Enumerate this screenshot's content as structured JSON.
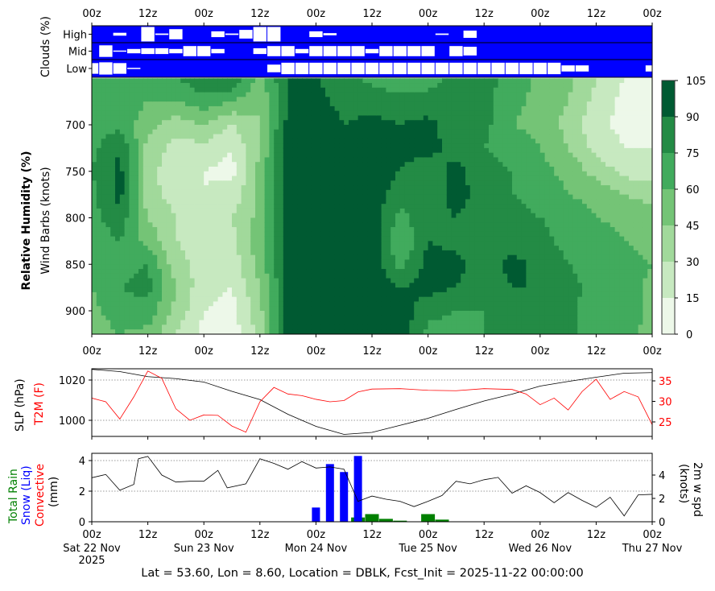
{
  "footer": "Lat = 53.60, Lon = 8.60, Location = DBLK, Fcst_Init = 2025-11-22 00:00:00",
  "time_axis": {
    "range_hours": [
      0,
      120
    ],
    "tick_hours": [
      0,
      12,
      24,
      36,
      48,
      60,
      72,
      84,
      96,
      108,
      120
    ],
    "tick_labels": [
      "00z",
      "12z",
      "00z",
      "12z",
      "00z",
      "12z",
      "00z",
      "12z",
      "00z",
      "12z",
      "00z"
    ],
    "date_hours": [
      0,
      24,
      48,
      72,
      96,
      120
    ],
    "date_labels": [
      "Sat 22 Nov",
      "Sun 23 Nov",
      "Mon 24 Nov",
      "Tue 25 Nov",
      "Wed 26 Nov",
      "Thu 27 Nov"
    ],
    "year_label": "2025"
  },
  "chart_data": [
    {
      "type": "heatmap",
      "panel": "clouds",
      "ylabel": "Clouds (%)",
      "row_labels": [
        "High",
        "Mid",
        "Low"
      ],
      "background_color": "#0000ff",
      "box_color": "#ffffff",
      "time_step_hours": 3,
      "rows": {
        "High": [
          0,
          0,
          20,
          0,
          100,
          10,
          70,
          0,
          0,
          40,
          10,
          60,
          100,
          100,
          0,
          0,
          40,
          15,
          0,
          0,
          0,
          0,
          0,
          0,
          0,
          10,
          0,
          50,
          0,
          0,
          0,
          0,
          0,
          0,
          0,
          0,
          0,
          0,
          0,
          0,
          0
        ],
        "Mid": [
          0,
          80,
          5,
          30,
          40,
          40,
          30,
          70,
          70,
          30,
          0,
          0,
          40,
          70,
          70,
          30,
          70,
          70,
          70,
          70,
          30,
          70,
          70,
          70,
          70,
          0,
          70,
          60,
          0,
          0,
          0,
          0,
          0,
          0,
          0,
          0,
          0,
          0,
          0,
          0,
          0
        ],
        "Low": [
          70,
          80,
          70,
          5,
          0,
          0,
          0,
          0,
          0,
          0,
          0,
          0,
          0,
          50,
          75,
          75,
          75,
          75,
          75,
          75,
          75,
          75,
          75,
          75,
          75,
          75,
          75,
          75,
          75,
          75,
          75,
          75,
          75,
          75,
          40,
          40,
          0,
          0,
          0,
          0,
          40
        ]
      }
    },
    {
      "type": "heatmap",
      "panel": "relative-humidity",
      "ylabel": "Relative Humidity (%)",
      "ylabel2": "Wind Barbs (knots)",
      "y_ticks": [
        700,
        750,
        800,
        850,
        900
      ],
      "ylim": [
        925,
        650
      ],
      "colorbar": {
        "levels": [
          0,
          15,
          30,
          45,
          60,
          75,
          90,
          105
        ],
        "tick_labels": [
          "0",
          "15",
          "30",
          "45",
          "60",
          "75",
          "90",
          "105"
        ],
        "colors": [
          "#edf8e9",
          "#c7e9c0",
          "#a1d99b",
          "#74c476",
          "#41ab5d",
          "#238b45",
          "#005a32"
        ]
      },
      "pressure_levels": [
        650,
        675,
        700,
        725,
        750,
        775,
        800,
        825,
        850,
        875,
        900,
        925
      ],
      "time_step_hours": 6,
      "rh": [
        [
          60,
          65,
          70,
          70,
          75,
          70,
          70,
          65,
          70,
          60,
          55,
          50
        ],
        [
          75,
          70,
          70,
          90,
          95,
          95,
          85,
          75,
          70,
          75,
          70,
          60
        ],
        [
          70,
          60,
          50,
          40,
          35,
          35,
          45,
          55,
          75,
          80,
          70,
          55
        ],
        [
          75,
          60,
          35,
          25,
          20,
          25,
          30,
          30,
          35,
          45,
          40,
          30
        ],
        [
          85,
          70,
          45,
          25,
          15,
          15,
          20,
          25,
          25,
          20,
          15,
          10
        ],
        [
          90,
          60,
          30,
          15,
          10,
          20,
          30,
          25,
          20,
          15,
          10,
          5
        ],
        [
          55,
          45,
          45,
          45,
          50,
          50,
          50,
          55,
          50,
          45,
          40,
          35
        ],
        [
          90,
          90,
          95,
          100,
          100,
          100,
          100,
          100,
          95,
          95,
          95,
          95
        ],
        [
          90,
          95,
          100,
          100,
          100,
          100,
          100,
          100,
          100,
          100,
          100,
          100
        ],
        [
          85,
          85,
          90,
          95,
          95,
          100,
          100,
          100,
          100,
          95,
          95,
          95
        ],
        [
          70,
          85,
          95,
          100,
          100,
          100,
          100,
          100,
          100,
          100,
          100,
          100
        ],
        [
          65,
          80,
          90,
          95,
          90,
          80,
          70,
          60,
          70,
          90,
          100,
          100
        ],
        [
          70,
          80,
          95,
          95,
          80,
          80,
          85,
          90,
          95,
          95,
          80,
          70
        ],
        [
          80,
          80,
          80,
          85,
          95,
          95,
          90,
          85,
          95,
          90,
          75,
          70
        ],
        [
          80,
          80,
          80,
          75,
          80,
          85,
          80,
          80,
          80,
          80,
          75,
          75
        ],
        [
          70,
          65,
          60,
          70,
          75,
          75,
          80,
          85,
          95,
          90,
          80,
          75
        ],
        [
          55,
          55,
          55,
          60,
          65,
          70,
          75,
          80,
          85,
          90,
          90,
          80
        ],
        [
          50,
          45,
          40,
          45,
          55,
          60,
          70,
          70,
          75,
          80,
          80,
          80
        ],
        [
          30,
          25,
          20,
          25,
          40,
          55,
          60,
          70,
          70,
          70,
          65,
          60
        ],
        [
          15,
          10,
          10,
          15,
          25,
          45,
          55,
          60,
          65,
          70,
          70,
          65
        ],
        [
          15,
          10,
          10,
          15,
          20,
          40,
          50,
          55,
          60,
          55,
          55,
          55
        ]
      ]
    },
    {
      "type": "line",
      "panel": "slp-t2m",
      "ylabel": "SLP (hPa)",
      "ylabel_right": "T2M (F)",
      "y_ticks": [
        1000,
        1020
      ],
      "y_ticks_right": [
        25,
        30,
        35
      ],
      "ylim": [
        991.5,
        1025.5
      ],
      "ylim_right": [
        21.3,
        37.8
      ],
      "grid": "horizontal dotted",
      "series": [
        {
          "name": "SLP (hPa)",
          "color": "#000000",
          "axis": "left",
          "points": [
            [
              0,
              1025.3
            ],
            [
              6,
              1024.2
            ],
            [
              12,
              1021.7
            ],
            [
              18,
              1020.7
            ],
            [
              24,
              1019
            ],
            [
              30,
              1014.4
            ],
            [
              36,
              1010.3
            ],
            [
              42,
              1003
            ],
            [
              48,
              997
            ],
            [
              54,
              993
            ],
            [
              60,
              994
            ],
            [
              66,
              997.5
            ],
            [
              72,
              1001
            ],
            [
              78,
              1005.4
            ],
            [
              84,
              1009.6
            ],
            [
              90,
              1013
            ],
            [
              96,
              1017
            ],
            [
              102,
              1019.3
            ],
            [
              108,
              1021.4
            ],
            [
              114,
              1023.4
            ],
            [
              120,
              1023.7
            ]
          ]
        },
        {
          "name": "T2M (F)",
          "color": "#ff0000",
          "axis": "right",
          "points": [
            [
              0,
              30.8
            ],
            [
              3,
              29.9
            ],
            [
              6,
              25.7
            ],
            [
              9,
              31.1
            ],
            [
              12,
              37.4
            ],
            [
              15,
              35.6
            ],
            [
              18,
              28.2
            ],
            [
              21,
              25.4
            ],
            [
              24,
              26.7
            ],
            [
              27,
              26.6
            ],
            [
              30,
              24
            ],
            [
              33,
              22.5
            ],
            [
              36,
              29.9
            ],
            [
              39,
              33.4
            ],
            [
              42,
              31.8
            ],
            [
              45,
              31.4
            ],
            [
              48,
              30.5
            ],
            [
              51,
              29.9
            ],
            [
              54,
              30.2
            ],
            [
              57,
              32.3
            ],
            [
              60,
              33
            ],
            [
              66,
              33.1
            ],
            [
              72,
              32.7
            ],
            [
              78,
              32.6
            ],
            [
              84,
              33.1
            ],
            [
              90,
              32.9
            ],
            [
              93,
              31.8
            ],
            [
              96,
              29.2
            ],
            [
              99,
              30.8
            ],
            [
              102,
              27.9
            ],
            [
              105,
              32.4
            ],
            [
              108,
              35.4
            ],
            [
              111,
              30.5
            ],
            [
              114,
              32.4
            ],
            [
              117,
              31.1
            ],
            [
              120,
              24.3
            ]
          ]
        }
      ]
    },
    {
      "type": "bar",
      "panel": "precip-wind",
      "ylabels": [
        {
          "text": "Total Rain",
          "color": "#008000"
        },
        {
          "text": "Snow (Liq)",
          "color": "#0000ff"
        },
        {
          "text": "Convective",
          "color": "#ff0000"
        },
        {
          "text": "(mm)",
          "color": "#000000"
        }
      ],
      "ylabel_right": [
        "2m w spd",
        "(knots)"
      ],
      "y_ticks": [
        0,
        2,
        4
      ],
      "y_ticks_right": [
        0,
        2,
        4
      ],
      "ylim": [
        0,
        4.5
      ],
      "ylim_right": [
        0,
        5.9
      ],
      "grid": "horizontal dotted",
      "total_rain": {
        "color": "#008000",
        "bars": [
          [
            57,
            0.28
          ],
          [
            60,
            0.5
          ],
          [
            63,
            0.19
          ],
          [
            66,
            0.07
          ],
          [
            72,
            0.5
          ],
          [
            75,
            0.14
          ]
        ]
      },
      "snow_liq": {
        "color": "#0000ff",
        "bars": [
          [
            48,
            0.93
          ],
          [
            51,
            3.77
          ],
          [
            54,
            3.25
          ],
          [
            57,
            4.3
          ]
        ]
      },
      "wind_2m": {
        "color": "#000000",
        "axis": "right",
        "points": [
          [
            0,
            3.77
          ],
          [
            3,
            4.05
          ],
          [
            6,
            2.7
          ],
          [
            9,
            3.2
          ],
          [
            10,
            5.4
          ],
          [
            12,
            5.6
          ],
          [
            15,
            4
          ],
          [
            18,
            3.4
          ],
          [
            21,
            3.47
          ],
          [
            24,
            3.47
          ],
          [
            27,
            4.4
          ],
          [
            29,
            2.9
          ],
          [
            33,
            3.25
          ],
          [
            36,
            5.4
          ],
          [
            39,
            5
          ],
          [
            42,
            4.5
          ],
          [
            45,
            5.15
          ],
          [
            48,
            4.6
          ],
          [
            51,
            4.7
          ],
          [
            54,
            4.5
          ],
          [
            57,
            1.75
          ],
          [
            60,
            2.2
          ],
          [
            63,
            1.93
          ],
          [
            66,
            1.75
          ],
          [
            69,
            1.3
          ],
          [
            72,
            1.75
          ],
          [
            75,
            2.25
          ],
          [
            78,
            3.47
          ],
          [
            81,
            3.25
          ],
          [
            84,
            3.6
          ],
          [
            87,
            3.8
          ],
          [
            90,
            2.45
          ],
          [
            93,
            3.08
          ],
          [
            96,
            2.5
          ],
          [
            99,
            1.63
          ],
          [
            102,
            2.5
          ],
          [
            105,
            1.83
          ],
          [
            108,
            1.24
          ],
          [
            111,
            2.1
          ],
          [
            114,
            0.5
          ],
          [
            117,
            2.3
          ],
          [
            120,
            2.35
          ]
        ]
      }
    }
  ]
}
